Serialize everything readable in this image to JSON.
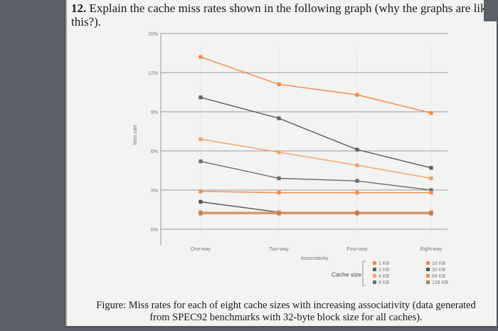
{
  "question": {
    "number": "12.",
    "text": "Explain the cache miss rates shown in the following graph (why the graphs are like this?)."
  },
  "caption": "Figure: Miss rates for each of eight cache sizes with increasing associativity (data generated from SPEC92 benchmarks with 32-byte block size for all caches).",
  "chart_data": {
    "type": "line",
    "xlabel": "Associativity",
    "ylabel": "Miss rate",
    "categories": [
      "One-way",
      "Two-way",
      "Four-way",
      "Eight-way"
    ],
    "y_ticks": [
      "0%",
      "3%",
      "6%",
      "9%",
      "12%",
      "15%"
    ],
    "ylim": [
      0,
      15
    ],
    "grid": true,
    "legend_title": "Cache size",
    "legend_placement": "bottom-right",
    "series": [
      {
        "name": "1 KB",
        "color": "#f08a4b",
        "values": [
          13.2,
          11.1,
          10.3,
          8.9
        ]
      },
      {
        "name": "2 KB",
        "color": "#5b5f66",
        "values": [
          10.1,
          8.5,
          6.1,
          4.7
        ]
      },
      {
        "name": "4 KB",
        "color": "#f2a36c",
        "values": [
          6.9,
          5.9,
          4.9,
          3.9
        ]
      },
      {
        "name": "8 KB",
        "color": "#6a6d72",
        "values": [
          5.2,
          3.9,
          3.7,
          3.0
        ]
      },
      {
        "name": "16 KB",
        "color": "#f08a4b",
        "values": [
          2.9,
          2.8,
          2.8,
          2.8
        ]
      },
      {
        "name": "32 KB",
        "color": "#555555",
        "values": [
          2.1,
          1.3,
          1.3,
          1.3
        ]
      },
      {
        "name": "64 KB",
        "color": "#f08a4b",
        "values": [
          1.3,
          1.3,
          1.3,
          1.3
        ]
      },
      {
        "name": "128 KB",
        "color": "#b97a55",
        "values": [
          1.2,
          1.2,
          1.2,
          1.2
        ]
      }
    ]
  }
}
